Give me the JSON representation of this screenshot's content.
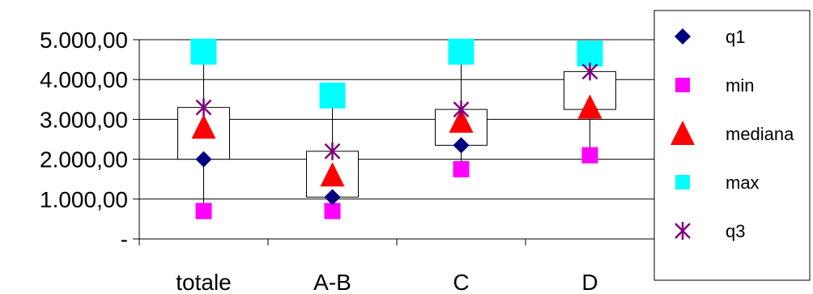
{
  "chart_data": {
    "type": "scatter",
    "subtype": "box-plot (high-low-close style)",
    "title": "",
    "xlabel": "",
    "ylabel": "",
    "categories": [
      "totale",
      "A-B",
      "C",
      "D"
    ],
    "ylim": [
      0,
      5000
    ],
    "yticks": [
      {
        "value": 0,
        "label": "-"
      },
      {
        "value": 1000,
        "label": "1.000,00"
      },
      {
        "value": 2000,
        "label": "2.000,00"
      },
      {
        "value": 3000,
        "label": "3.000,00"
      },
      {
        "value": 4000,
        "label": "4.000,00"
      },
      {
        "value": 5000,
        "label": "5.000,00"
      }
    ],
    "grid": true,
    "legend_position": "right",
    "series": [
      {
        "name": "q1",
        "marker": "diamond",
        "color": "#000080",
        "values": [
          2000,
          1050,
          2350,
          3250
        ]
      },
      {
        "name": "min",
        "marker": "square",
        "color": "#FF00FF",
        "values": [
          700,
          700,
          1750,
          2100
        ]
      },
      {
        "name": "mediana",
        "marker": "triangle",
        "color": "#FF0000",
        "values": [
          2800,
          1600,
          2950,
          3300
        ]
      },
      {
        "name": "max",
        "marker": "square",
        "color": "#00FFFF",
        "values": [
          4700,
          3600,
          4700,
          4650
        ]
      },
      {
        "name": "q3",
        "marker": "asterisk",
        "color": "#800080",
        "values": [
          3300,
          2200,
          3250,
          4200
        ]
      }
    ]
  }
}
